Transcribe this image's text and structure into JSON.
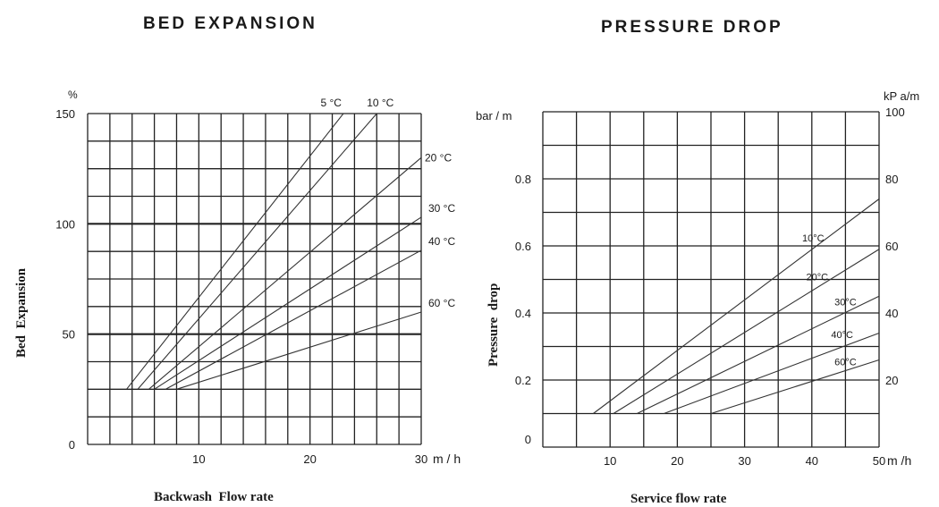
{
  "chart_data": [
    {
      "type": "line",
      "title": "BED EXPANSION",
      "xlabel": "Backwash  Flow rate",
      "ylabel": "Bed  Expansion",
      "x_unit": "m / h",
      "y_unit": "%",
      "xlim": [
        0,
        30
      ],
      "ylim": [
        0,
        150
      ],
      "x_ticks": [
        {
          "v": 10,
          "label": "10"
        },
        {
          "v": 20,
          "label": "20"
        },
        {
          "v": 30,
          "label": "30"
        }
      ],
      "y_ticks": [
        {
          "v": 0,
          "label": "0"
        },
        {
          "v": 50,
          "label": "50"
        },
        {
          "v": 100,
          "label": "100"
        },
        {
          "v": 150,
          "label": "150"
        }
      ],
      "series": [
        {
          "name": "5 °C",
          "points": [
            [
              3.5,
              25
            ],
            [
              23,
              150
            ]
          ]
        },
        {
          "name": "10 °C",
          "points": [
            [
              4.5,
              25
            ],
            [
              26,
              150
            ]
          ]
        },
        {
          "name": "20 °C",
          "points": [
            [
              5.5,
              25
            ],
            [
              30,
              130
            ]
          ]
        },
        {
          "name": "30 °C",
          "points": [
            [
              6,
              25
            ],
            [
              30,
              103
            ]
          ]
        },
        {
          "name": "40 °C",
          "points": [
            [
              7,
              25
            ],
            [
              30,
              88
            ]
          ]
        },
        {
          "name": "60 °C",
          "points": [
            [
              8,
              25
            ],
            [
              30,
              60
            ]
          ]
        }
      ],
      "grid": true
    },
    {
      "type": "line",
      "title": "PRESSURE DROP",
      "xlabel": "Service flow rate",
      "ylabel": "Pressure  drop",
      "x_unit": "m /h",
      "y_unit_left": "bar / m",
      "y_unit_right": "kP a/m",
      "xlim": [
        0,
        50
      ],
      "ylim": [
        0,
        1.0
      ],
      "x_ticks": [
        {
          "v": 10,
          "label": "10"
        },
        {
          "v": 20,
          "label": "20"
        },
        {
          "v": 30,
          "label": "30"
        },
        {
          "v": 40,
          "label": "40"
        },
        {
          "v": 50,
          "label": "50"
        }
      ],
      "y_ticks_left": [
        {
          "v": 0,
          "label": "0"
        },
        {
          "v": 0.2,
          "label": "0.2"
        },
        {
          "v": 0.4,
          "label": "0.4"
        },
        {
          "v": 0.6,
          "label": "0.6"
        },
        {
          "v": 0.8,
          "label": "0.8"
        }
      ],
      "y_ticks_right": [
        {
          "v": 0.2,
          "label": "20"
        },
        {
          "v": 0.4,
          "label": "40"
        },
        {
          "v": 0.6,
          "label": "60"
        },
        {
          "v": 0.8,
          "label": "80"
        },
        {
          "v": 1.0,
          "label": "100"
        }
      ],
      "series": [
        {
          "name": "10°C",
          "points": [
            [
              7.5,
              0.1
            ],
            [
              50,
              0.74
            ]
          ]
        },
        {
          "name": "20°C",
          "points": [
            [
              10.5,
              0.1
            ],
            [
              50,
              0.59
            ]
          ]
        },
        {
          "name": "30°C",
          "points": [
            [
              14,
              0.1
            ],
            [
              50,
              0.45
            ]
          ]
        },
        {
          "name": "40°C",
          "points": [
            [
              18,
              0.1
            ],
            [
              50,
              0.34
            ]
          ]
        },
        {
          "name": "60°C",
          "points": [
            [
              25,
              0.1
            ],
            [
              50,
              0.26
            ]
          ]
        }
      ],
      "grid": true
    }
  ]
}
